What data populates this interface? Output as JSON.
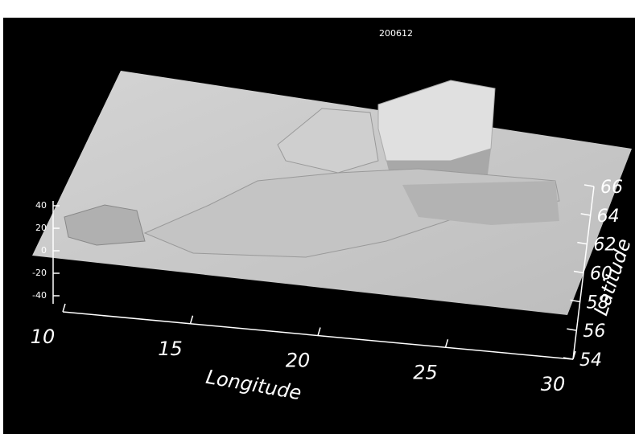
{
  "chart_data": {
    "type": "surface",
    "title": "200612",
    "xlabel": "Longitude",
    "ylabel": "Latitude",
    "xlim": [
      10,
      30
    ],
    "xticks": [
      10,
      15,
      20,
      25,
      30
    ],
    "ylim": [
      54,
      66
    ],
    "yticks": [
      54,
      56,
      58,
      60,
      62,
      64,
      66
    ],
    "zlim": [
      -40,
      40
    ],
    "zticks": [
      40,
      20,
      0,
      -20,
      -40
    ]
  }
}
